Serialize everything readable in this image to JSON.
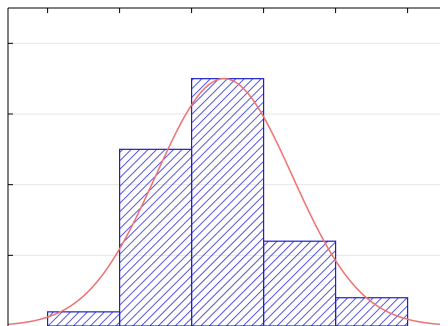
{
  "chart_data": {
    "type": "bar",
    "subtype": "histogram-with-normal-fit",
    "bins": [
      {
        "x0": 1,
        "x1": 2,
        "value": 0.2
      },
      {
        "x0": 2,
        "x1": 3,
        "value": 2.5
      },
      {
        "x0": 3,
        "x1": 4,
        "value": 3.5
      },
      {
        "x0": 4,
        "x1": 5,
        "value": 1.2
      },
      {
        "x0": 5,
        "x1": 6,
        "value": 0.4
      }
    ],
    "normal_curve": {
      "mean": 3.45,
      "sd": 0.95,
      "peak": 3.5
    },
    "xlim": [
      0.45,
      6.45
    ],
    "ylim": [
      0,
      4.5
    ],
    "grid": true,
    "colors": {
      "bar_hatch": "#2b2bd6",
      "bar_edge": "#1f1fd0",
      "curve": "#f07070",
      "axis": "#000000",
      "grid": "#e6e6e6"
    }
  }
}
